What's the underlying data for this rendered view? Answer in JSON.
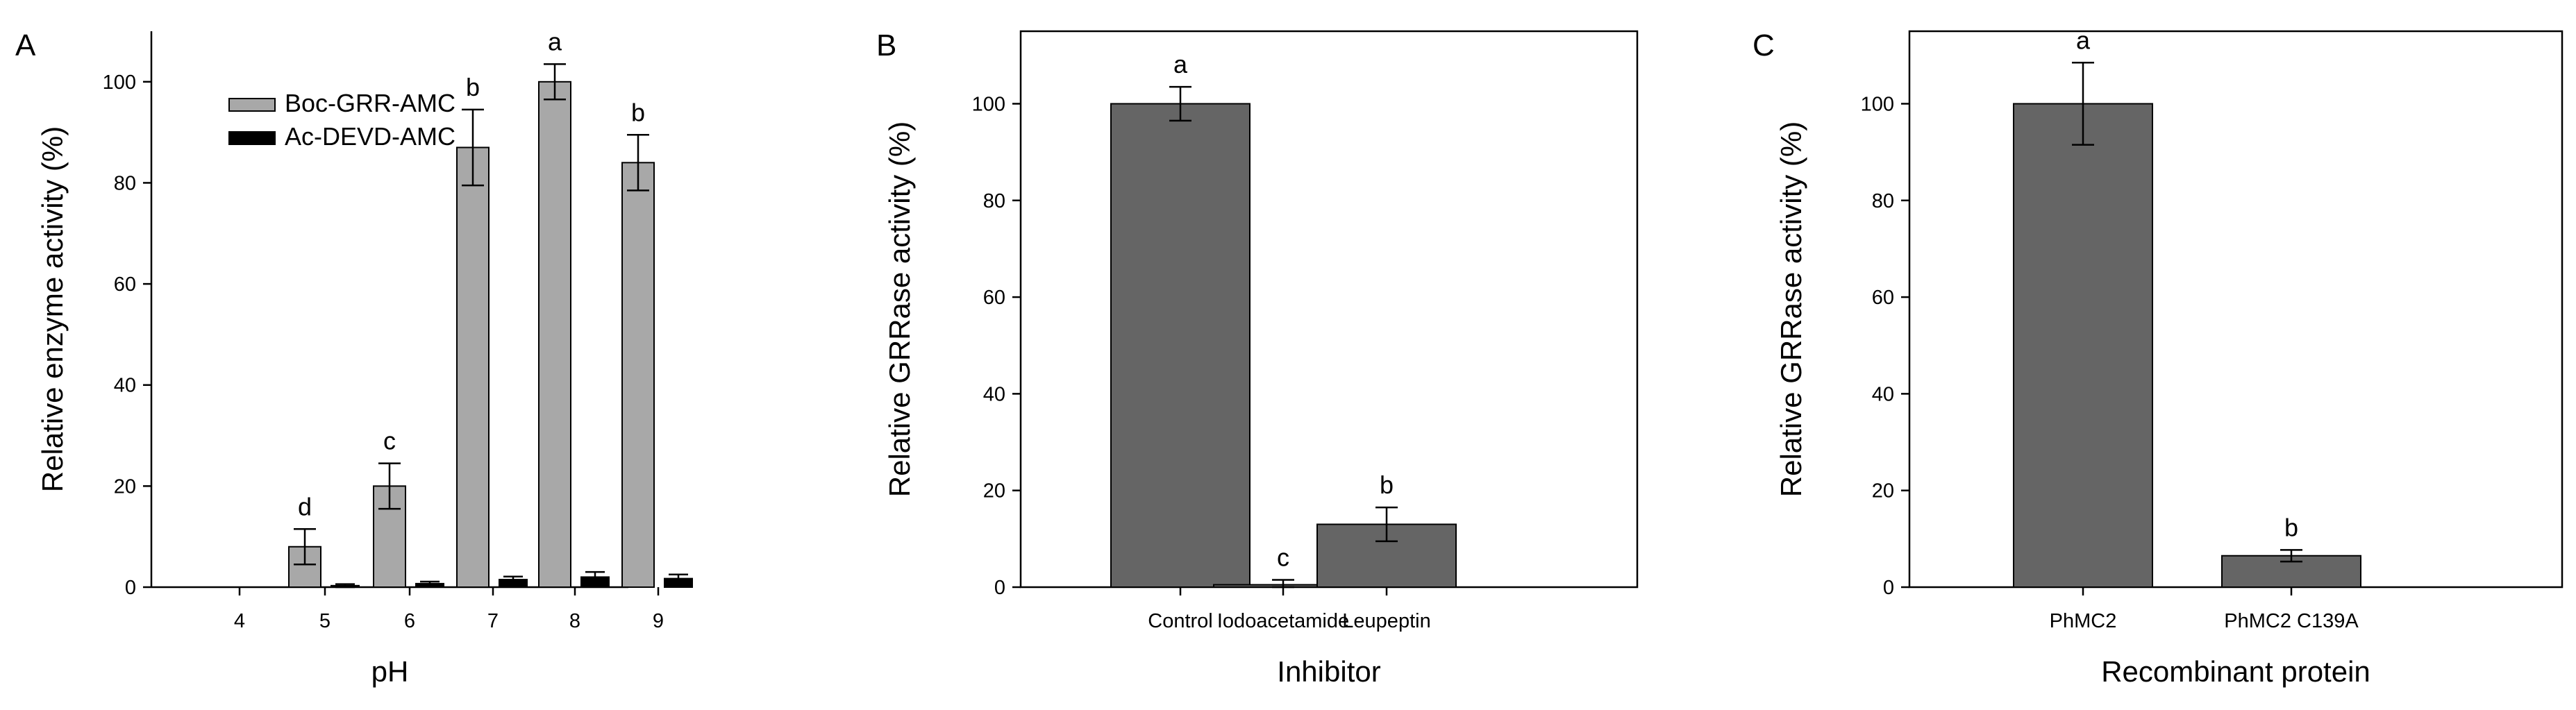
{
  "colors": {
    "boc": "#a8a8a8",
    "devd": "#000000",
    "grrase": "#656565"
  },
  "chart_data": [
    {
      "type": "bar",
      "panel_label": "A",
      "categories": [
        "4",
        "5",
        "6",
        "7",
        "8",
        "9"
      ],
      "xlabel": "pH",
      "ylabel": "Relative enzyme activity (%)",
      "ylim": [
        0,
        110
      ],
      "yticks": [
        0,
        20,
        40,
        60,
        80,
        100
      ],
      "frame": "open",
      "legend": "top-left",
      "series": [
        {
          "name": "Boc-GRR-AMC",
          "values": [
            0,
            8,
            20,
            87,
            100,
            84
          ],
          "errors": [
            0,
            3.5,
            4.5,
            7.5,
            3.5,
            5.5
          ],
          "letters": [
            "",
            "d",
            "c",
            "b",
            "a",
            "b"
          ]
        },
        {
          "name": "Ac-DEVD-AMC",
          "values": [
            0,
            0.3,
            0.7,
            1.5,
            2,
            1.7
          ],
          "errors": [
            0,
            0.3,
            0.4,
            0.6,
            1.0,
            0.8
          ],
          "letters": [
            "",
            "",
            "",
            "",
            "",
            ""
          ]
        }
      ]
    },
    {
      "type": "bar",
      "panel_label": "B",
      "categories": [
        "Control",
        "Iodoacetamide",
        "Leupeptin"
      ],
      "xlabel": "Inhibitor",
      "ylabel": "Relative GRRase activity (%)",
      "ylim": [
        0,
        115
      ],
      "yticks": [
        0,
        20,
        40,
        60,
        80,
        100
      ],
      "frame": "box",
      "series": [
        {
          "values": [
            100,
            0.5,
            13
          ],
          "errors": [
            3.5,
            1.0,
            3.5
          ],
          "letters": [
            "a",
            "c",
            "b"
          ]
        }
      ]
    },
    {
      "type": "bar",
      "panel_label": "C",
      "categories": [
        "PhMC2",
        "PhMC2 C139A"
      ],
      "xlabel": "Recombinant protein",
      "ylabel": "Relative GRRase activity (%)",
      "ylim": [
        0,
        115
      ],
      "yticks": [
        0,
        20,
        40,
        60,
        80,
        100
      ],
      "frame": "box",
      "series": [
        {
          "values": [
            100,
            6.5
          ],
          "errors": [
            8.5,
            1.2
          ],
          "letters": [
            "a",
            "b"
          ]
        }
      ]
    }
  ]
}
